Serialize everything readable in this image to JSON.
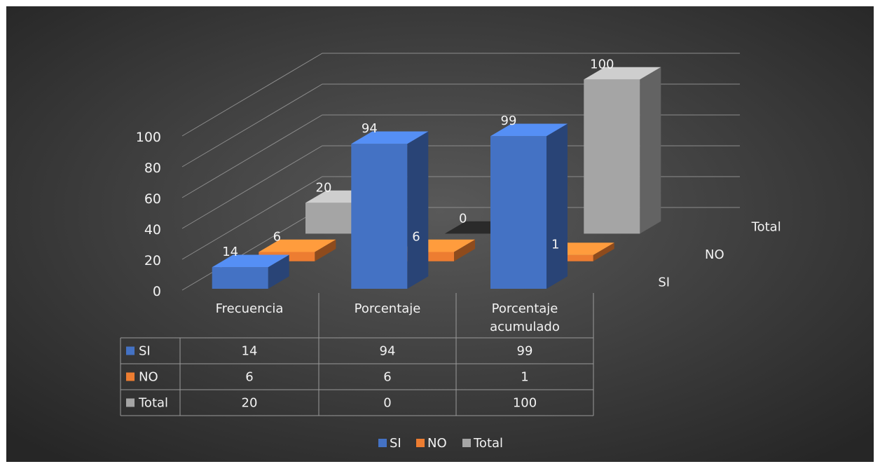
{
  "chart_data": {
    "type": "bar",
    "title": "",
    "categories": [
      "Frecuencia",
      "Porcentaje",
      "Porcentaje acumulado"
    ],
    "category_lines": [
      [
        "Frecuencia"
      ],
      [
        "Porcentaje"
      ],
      [
        "Porcentaje",
        "acumulado"
      ]
    ],
    "series": [
      {
        "name": "SI",
        "values": [
          14,
          94,
          99
        ],
        "color": "#4472C4"
      },
      {
        "name": "NO",
        "values": [
          6,
          6,
          1
        ],
        "color": "#ED7D31"
      },
      {
        "name": "Total",
        "values": [
          20,
          0,
          100
        ],
        "color": "#A5A5A5"
      }
    ],
    "ylim": [
      0,
      100
    ],
    "yticks": [
      "0",
      "20",
      "40",
      "60",
      "80",
      "100"
    ],
    "grid": true,
    "data_table": true,
    "legend_position": "bottom",
    "colors": {
      "background_center": "#5a5a5a",
      "background_edge": "#262626",
      "text": "#f2f2f2",
      "grid": "#8c8c8c"
    }
  }
}
